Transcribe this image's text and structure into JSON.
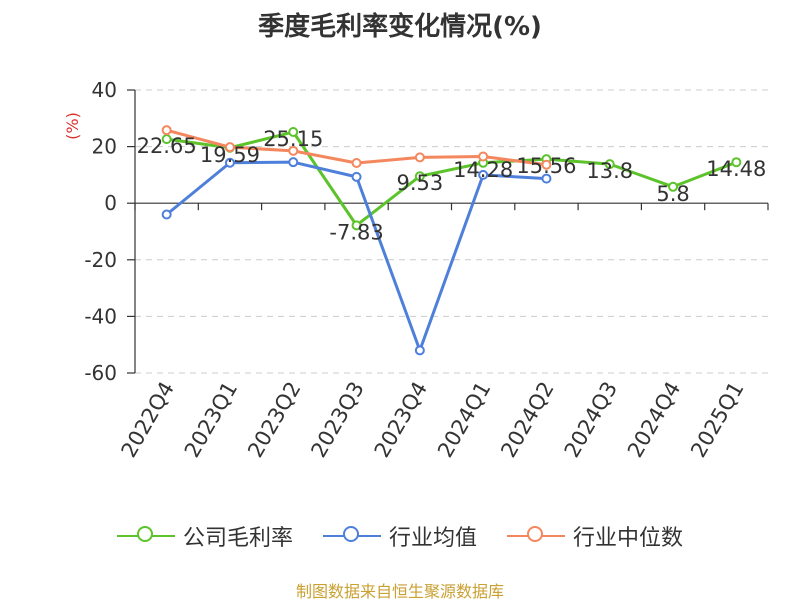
{
  "title": "季度毛利率变化情况(%)",
  "footer": "制图数据来自恒生聚源数据库",
  "chart_data": {
    "type": "line",
    "title": "季度毛利率变化情况(%)",
    "ylabel": "(%)",
    "xlabel": "",
    "ylim": [
      -60,
      40
    ],
    "yticks": [
      40,
      20,
      0,
      -20,
      -40,
      -60
    ],
    "grid": true,
    "legend_position": "bottom",
    "categories": [
      "2022Q4",
      "2023Q1",
      "2023Q2",
      "2023Q3",
      "2023Q4",
      "2024Q1",
      "2024Q2",
      "2024Q3",
      "2024Q4",
      "2025Q1"
    ],
    "series": [
      {
        "name": "公司毛利率",
        "color": "#5cc32a",
        "values": [
          22.65,
          19.59,
          25.15,
          -7.83,
          9.53,
          14.28,
          15.56,
          13.8,
          5.8,
          14.48
        ],
        "labels": [
          "22.65",
          "19.59",
          "25.15",
          "-7.83",
          "9.53",
          "14.28",
          "15.56",
          "13.8",
          "5.8",
          "14.48"
        ]
      },
      {
        "name": "行业均值",
        "color": "#4e7fdb",
        "values": [
          -4,
          14.3,
          14.5,
          9.3,
          -52,
          10,
          8.7,
          null,
          null,
          null
        ]
      },
      {
        "name": "行业中位数",
        "color": "#f4875e",
        "values": [
          25.8,
          19.8,
          18.5,
          14.2,
          16.2,
          16.5,
          13.6,
          null,
          null,
          null
        ]
      }
    ]
  }
}
